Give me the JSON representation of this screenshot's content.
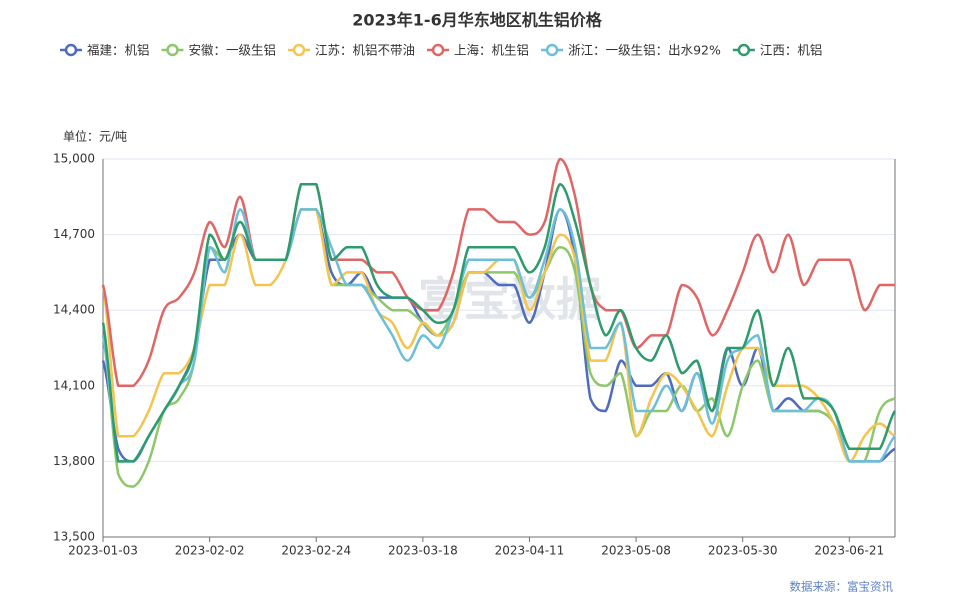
{
  "chart_data": {
    "type": "line",
    "title": "2023年1-6月华东地区机生铝价格",
    "y_unit": "单位：元/吨",
    "source": "数据来源：富宝资讯",
    "watermark": "富宝数据",
    "categories": [
      "2023-01-03",
      null,
      null,
      null,
      null,
      null,
      null,
      "2023-02-02",
      null,
      null,
      null,
      null,
      null,
      null,
      "2023-02-24",
      null,
      null,
      null,
      null,
      null,
      null,
      "2023-03-18",
      null,
      null,
      null,
      null,
      null,
      null,
      "2023-04-11",
      null,
      null,
      null,
      null,
      null,
      null,
      "2023-05-08",
      null,
      null,
      null,
      null,
      null,
      null,
      "2023-05-30",
      null,
      null,
      null,
      null,
      null,
      null,
      "2023-06-21",
      null,
      null,
      null
    ],
    "ylim": [
      13500,
      15000
    ],
    "yticks": [
      {
        "value": 13500,
        "label": "13,500"
      },
      {
        "value": 13800,
        "label": "13,800"
      },
      {
        "value": 14100,
        "label": "14,100"
      },
      {
        "value": 14400,
        "label": "14,400"
      },
      {
        "value": 14700,
        "label": "14,700"
      },
      {
        "value": 15000,
        "label": "15,000"
      }
    ],
    "grid": true,
    "legend": "top",
    "series": [
      {
        "name": "福建：机铝",
        "color": "#4e6bbf",
        "values": [
          14200,
          13850,
          13800,
          13900,
          14000,
          14100,
          14250,
          14600,
          14600,
          14700,
          14600,
          14600,
          14600,
          14800,
          14800,
          14550,
          14500,
          14550,
          14450,
          14450,
          14450,
          14350,
          14300,
          14350,
          14550,
          14550,
          14500,
          14500,
          14350,
          14550,
          14800,
          14600,
          14050,
          14000,
          14200,
          14100,
          14100,
          14150,
          14000,
          14150,
          14000,
          14250,
          14100,
          14250,
          14000,
          14050,
          14000,
          14000,
          13950,
          13800,
          13800,
          13800,
          13850
        ]
      },
      {
        "name": "安徽：一级生铝",
        "color": "#8dc76b",
        "values": [
          14300,
          13750,
          13700,
          13800,
          14000,
          14050,
          14200,
          14650,
          14600,
          14750,
          14600,
          14600,
          14600,
          14800,
          14800,
          14500,
          14500,
          14500,
          14450,
          14400,
          14400,
          14350,
          14300,
          14400,
          14550,
          14550,
          14550,
          14550,
          14450,
          14550,
          14650,
          14550,
          14150,
          14100,
          14150,
          13900,
          14000,
          14000,
          14100,
          14000,
          14050,
          13900,
          14100,
          14200,
          14000,
          14000,
          14000,
          14000,
          13950,
          13800,
          13800,
          14000,
          14050
        ]
      },
      {
        "name": "江苏：机铝不带油",
        "color": "#f3c450",
        "values": [
          14500,
          13900,
          13900,
          14000,
          14150,
          14150,
          14250,
          14500,
          14500,
          14700,
          14500,
          14500,
          14600,
          14800,
          14800,
          14500,
          14550,
          14550,
          14400,
          14350,
          14250,
          14350,
          14300,
          14350,
          14550,
          14550,
          14600,
          14600,
          14400,
          14550,
          14700,
          14600,
          14200,
          14200,
          14350,
          13900,
          14050,
          14150,
          14100,
          14000,
          13900,
          14100,
          14250,
          14250,
          14100,
          14100,
          14100,
          14050,
          13950,
          13800,
          13900,
          13950,
          13900
        ]
      },
      {
        "name": "上海：机生铝",
        "color": "#e06666",
        "values": [
          14500,
          14100,
          14100,
          14200,
          14400,
          14450,
          14550,
          14750,
          14650,
          14850,
          14600,
          14600,
          14600,
          14900,
          14900,
          14600,
          14600,
          14600,
          14550,
          14550,
          14450,
          14400,
          14400,
          14550,
          14800,
          14800,
          14750,
          14750,
          14700,
          14750,
          15000,
          14850,
          14500,
          14400,
          14400,
          14250,
          14300,
          14300,
          14500,
          14450,
          14300,
          14400,
          14550,
          14700,
          14550,
          14700,
          14500,
          14600,
          14600,
          14600,
          14400,
          14500,
          14500
        ]
      },
      {
        "name": "浙江：一级生铝：出水92%",
        "color": "#6cbfd9",
        "values": [
          14300,
          13800,
          13800,
          13900,
          14000,
          14100,
          14200,
          14650,
          14550,
          14800,
          14600,
          14600,
          14600,
          14800,
          14800,
          14650,
          14500,
          14500,
          14400,
          14300,
          14200,
          14300,
          14250,
          14400,
          14600,
          14600,
          14600,
          14600,
          14450,
          14600,
          14800,
          14650,
          14250,
          14250,
          14350,
          14000,
          14000,
          14100,
          14000,
          14150,
          13950,
          14200,
          14250,
          14300,
          14000,
          14000,
          14000,
          14050,
          14000,
          13800,
          13800,
          13800,
          13900
        ]
      },
      {
        "name": "江西：机铝",
        "color": "#2e9b6c",
        "values": [
          14350,
          13800,
          13800,
          13900,
          14000,
          14100,
          14250,
          14700,
          14600,
          14750,
          14600,
          14600,
          14600,
          14900,
          14900,
          14600,
          14650,
          14650,
          14500,
          14450,
          14450,
          14400,
          14350,
          14400,
          14650,
          14650,
          14650,
          14650,
          14550,
          14650,
          14900,
          14750,
          14500,
          14300,
          14400,
          14250,
          14200,
          14300,
          14150,
          14200,
          14000,
          14250,
          14250,
          14400,
          14100,
          14250,
          14050,
          14050,
          14000,
          13850,
          13850,
          13850,
          14000
        ]
      }
    ]
  }
}
